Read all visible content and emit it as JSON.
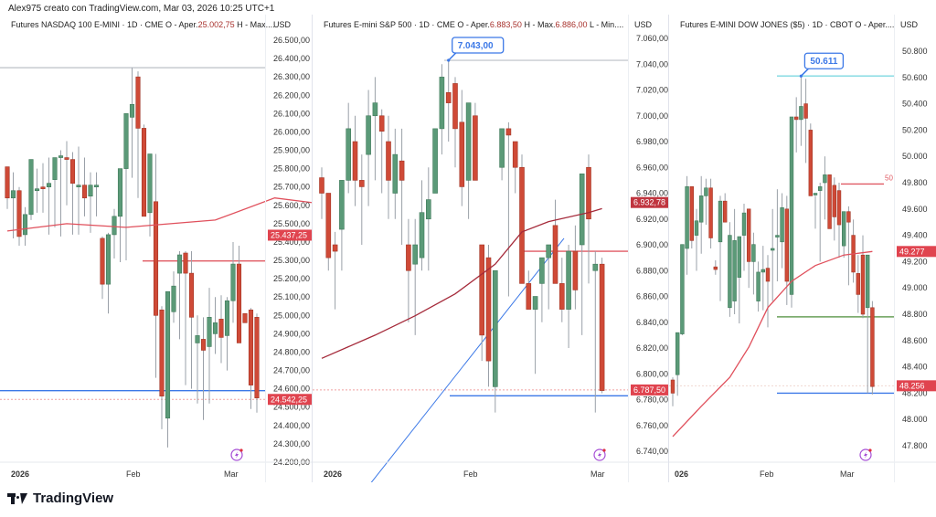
{
  "header": {
    "caption": "Alex975 creato con TradingView.com, Mar 03, 2026 10:25 UTC+1"
  },
  "brand": {
    "name": "TradingView",
    "icon": "tradingview-logo"
  },
  "colors": {
    "up": "#5b9a78",
    "down": "#cf4a37",
    "ma": "#e0505c",
    "ma_dark": "#a52a3a",
    "hline_blue": "#3b78e7",
    "hline_red": "#e05a63",
    "hline_green": "#6aa05a",
    "hline_cyan": "#7fd8e0",
    "label_bg_red": "#e0444f",
    "label_bg_dark": "#c0353f",
    "callout_blue": "#3b78e7",
    "grid": "#f0f2f5"
  },
  "panes": [
    {
      "title_prefix": "Futures NASDAQ 100 E-MINI · 1D · CME  O - Aper.",
      "title_value": "25.002,75",
      "title_suffix": "  H - Max....",
      "currency": "USD",
      "x_labels": [
        {
          "text": "2026",
          "x": 12,
          "bold": true
        },
        {
          "text": "Feb",
          "x": 138
        },
        {
          "text": "Mar",
          "x": 245
        }
      ],
      "price_labels": [
        {
          "text": "25.437,25",
          "value": 25437.25,
          "color": "#e0444f"
        },
        {
          "text": "24.542,25",
          "value": 24542.25,
          "color": "#e0444f"
        }
      ]
    },
    {
      "title_prefix": "Futures E-mini S&P 500 · 1D · CME  O - Aper.",
      "title_value": "6.883,50",
      "title_mid": "  H - Max.",
      "title_value2": "6.886,00",
      "title_suffix": "  L - Min....",
      "currency": "USD",
      "callout": "7.043,00",
      "x_labels": [
        {
          "text": "2026",
          "x": 12,
          "bold": true
        },
        {
          "text": "Feb",
          "x": 165
        },
        {
          "text": "Mar",
          "x": 304
        }
      ],
      "price_labels": [
        {
          "text": "6.932,78",
          "value": 6932.78,
          "color": "#c0353f"
        },
        {
          "text": "6.787,50",
          "value": 6787.5,
          "color": "#e0444f"
        }
      ]
    },
    {
      "title_prefix": "Futures E-MINI DOW JONES ($5) · 1D · CBOT  O - Aper....",
      "currency": "USD",
      "callout": "50.611",
      "ma_side_label": "50",
      "x_labels": [
        {
          "text": "026",
          "x": 6,
          "bold": true
        },
        {
          "text": "Feb",
          "x": 99
        },
        {
          "text": "Mar",
          "x": 187
        }
      ],
      "price_labels": [
        {
          "text": "49.277",
          "value": 49277,
          "color": "#e0444f"
        },
        {
          "text": "48.256",
          "value": 48256,
          "color": "#e0444f"
        }
      ]
    }
  ],
  "chart_data": [
    {
      "type": "candlestick",
      "title": "Futures NASDAQ 100 E-MINI · 1D · CME",
      "ylabel": "USD",
      "ylim": [
        24200,
        26500
      ],
      "yticks": [
        26500,
        26400,
        26300,
        26200,
        26100,
        26000,
        25900,
        25800,
        25700,
        25600,
        25500,
        25400,
        25300,
        25200,
        25100,
        25000,
        24900,
        24800,
        24700,
        24600,
        24500,
        24400,
        24300,
        24200
      ],
      "ytick_labels": [
        "26.500,00",
        "26.400,00",
        "26.300,00",
        "26.200,00",
        "26.100,00",
        "26.000,00",
        "25.900,00",
        "25.800,00",
        "25.700,00",
        "25.600,00",
        "25.500,00",
        "25.400,00",
        "25.300,00",
        "25.200,00",
        "25.100,00",
        "25.000,00",
        "24.900,00",
        "24.800,00",
        "24.700,00",
        "24.600,00",
        "24.500,00",
        "24.400,00",
        "24.300,00",
        "24.200,00"
      ],
      "xlabels": [
        "2026",
        "Feb",
        "Mar"
      ],
      "candles": [
        [
          25810,
          25810,
          25580,
          25640
        ],
        [
          25640,
          25780,
          25420,
          25680
        ],
        [
          25680,
          25700,
          25380,
          25430
        ],
        [
          25440,
          25590,
          25380,
          25550
        ],
        [
          25550,
          25810,
          25520,
          25850
        ],
        [
          25680,
          25800,
          25560,
          25690
        ],
        [
          25700,
          25830,
          25560,
          25690
        ],
        [
          25700,
          25860,
          25440,
          25720
        ],
        [
          25740,
          25800,
          25480,
          25860
        ],
        [
          25860,
          25900,
          25430,
          25870
        ],
        [
          25860,
          25950,
          25600,
          25850
        ],
        [
          25850,
          25890,
          25440,
          25720
        ],
        [
          25700,
          25920,
          25440,
          25710
        ],
        [
          25710,
          25860,
          25540,
          25640
        ],
        [
          25650,
          25780,
          25450,
          25710
        ],
        [
          25700,
          25780,
          25540,
          25710
        ],
        [
          25420,
          25430,
          25090,
          25170
        ],
        [
          25170,
          25450,
          25010,
          25440
        ],
        [
          25440,
          25580,
          25310,
          25540
        ],
        [
          25540,
          25640,
          25290,
          25800
        ],
        [
          25800,
          25900,
          25300,
          26100
        ],
        [
          26080,
          26350,
          25750,
          26150
        ],
        [
          26300,
          26330,
          25640,
          26020
        ],
        [
          26020,
          26040,
          25540,
          25540
        ],
        [
          25560,
          25740,
          25430,
          25880
        ],
        [
          25620,
          25880,
          24660,
          25000
        ],
        [
          25030,
          25050,
          24380,
          24560
        ],
        [
          24440,
          24980,
          24280,
          25130
        ],
        [
          25020,
          25240,
          24960,
          25160
        ],
        [
          25230,
          25350,
          24870,
          25330
        ],
        [
          25340,
          25350,
          24620,
          25230
        ],
        [
          25230,
          25350,
          24600,
          24990
        ],
        [
          24850,
          25000,
          24520,
          24890
        ],
        [
          24870,
          24990,
          24430,
          24810
        ],
        [
          24830,
          25150,
          24520,
          24990
        ],
        [
          24900,
          25100,
          24790,
          24960
        ],
        [
          24980,
          25110,
          24740,
          24880
        ],
        [
          24890,
          25100,
          24700,
          25080
        ],
        [
          25080,
          25400,
          24960,
          25280
        ],
        [
          25280,
          25380,
          24890,
          24850
        ],
        [
          25010,
          25000,
          24990,
          24960
        ],
        [
          25030,
          25040,
          24490,
          24620
        ],
        [
          24990,
          25010,
          24470,
          24550
        ]
      ],
      "ma": [
        [
          0,
          25460
        ],
        [
          10,
          25500
        ],
        [
          20,
          25480
        ],
        [
          35,
          25520
        ],
        [
          45,
          25640
        ],
        [
          55,
          25600
        ],
        [
          70,
          25480
        ],
        [
          85,
          25410
        ]
      ],
      "hlines": [
        {
          "value": 26350,
          "color": "#c7cbd1",
          "from": 0
        },
        {
          "value": 25297,
          "color": "#e05a63",
          "from": 156
        },
        {
          "value": 24590,
          "color": "#3b78e7",
          "from": 0
        },
        {
          "value": 24542.25,
          "color": "#f0a0a0",
          "from": 0,
          "dotted": true
        }
      ]
    },
    {
      "type": "candlestick",
      "title": "Futures E-mini S&P 500 · 1D · CME",
      "ylabel": "USD",
      "ylim": [
        6735,
        7060
      ],
      "yticks": [
        7060,
        7040,
        7020,
        7000,
        6980,
        6960,
        6940,
        6920,
        6900,
        6880,
        6860,
        6840,
        6820,
        6800,
        6780,
        6760,
        6740
      ],
      "ytick_labels": [
        "7.060,00",
        "7.040,00",
        "7.020,00",
        "7.000,00",
        "6.980,00",
        "6.960,00",
        "6.940,00",
        "6.920,00",
        "6.900,00",
        "6.880,00",
        "6.860,00",
        "6.840,00",
        "6.820,00",
        "6.800,00",
        "6.780,00",
        "6.760,00",
        "6.740,00"
      ],
      "xlabels": [
        "2026",
        "Feb",
        "Mar"
      ],
      "candles": [
        [
          6952,
          6960,
          6920,
          6940
        ],
        [
          6940,
          6940,
          6880,
          6890
        ],
        [
          6900,
          6910,
          6850,
          6895
        ],
        [
          6912,
          6935,
          6880,
          6950
        ],
        [
          6950,
          7010,
          6940,
          6990
        ],
        [
          6980,
          7000,
          6930,
          6950
        ],
        [
          6950,
          6970,
          6900,
          6945
        ],
        [
          6970,
          7020,
          6930,
          7000
        ],
        [
          7000,
          7030,
          6950,
          7010
        ],
        [
          7000,
          7005,
          6940,
          6988
        ],
        [
          6980,
          7000,
          6920,
          6950
        ],
        [
          6940,
          6990,
          6920,
          6970
        ],
        [
          6965,
          6990,
          6900,
          6950
        ],
        [
          6900,
          6920,
          6840,
          6880
        ],
        [
          6885,
          6920,
          6830,
          6900
        ],
        [
          6890,
          6950,
          6880,
          6925
        ],
        [
          6920,
          6960,
          6880,
          6935
        ],
        [
          6940,
          6990,
          6940,
          6990
        ],
        [
          6990,
          7040,
          6970,
          7030
        ],
        [
          7018,
          7043,
          6980,
          7010
        ],
        [
          7025,
          7030,
          6960,
          6990
        ],
        [
          6995,
          7020,
          6930,
          6945
        ],
        [
          6950,
          6990,
          6920,
          7010
        ],
        [
          7000,
          7010,
          6950,
          6950
        ],
        [
          6900,
          6900,
          6810,
          6830
        ],
        [
          6890,
          6900,
          6790,
          6810
        ],
        [
          6790,
          6820,
          6770,
          6880
        ],
        [
          6960,
          6990,
          6950,
          6990
        ],
        [
          6990,
          6995,
          6860,
          6985
        ],
        [
          6980,
          6970,
          6940,
          6960
        ],
        [
          6960,
          6970,
          6880,
          6870
        ],
        [
          6870,
          6880,
          6850,
          6850
        ],
        [
          6850,
          6860,
          6800,
          6860
        ],
        [
          6870,
          6890,
          6840,
          6890
        ],
        [
          6890,
          6900,
          6850,
          6900
        ],
        [
          6915,
          6935,
          6880,
          6870
        ],
        [
          6870,
          6890,
          6840,
          6850
        ],
        [
          6850,
          6900,
          6820,
          6895
        ],
        [
          6895,
          6915,
          6850,
          6865
        ],
        [
          6900,
          6950,
          6830,
          6955
        ],
        [
          6960,
          6970,
          6870,
          6920
        ],
        [
          6880,
          6895,
          6770,
          6885
        ],
        [
          6885,
          6890,
          6785,
          6787
        ]
      ],
      "ma": [
        [
          0,
          6812
        ],
        [
          8,
          6830
        ],
        [
          14,
          6845
        ],
        [
          20,
          6862
        ],
        [
          26,
          6885
        ],
        [
          30,
          6910
        ],
        [
          34,
          6918
        ],
        [
          40,
          6925
        ],
        [
          42,
          6928
        ]
      ],
      "hlines": [
        {
          "value": 7043,
          "color": "#c7cbd1",
          "from": 144
        },
        {
          "value": 6895,
          "color": "#e05a63",
          "from": 230
        },
        {
          "value": 6783,
          "color": "#3b78e7",
          "from": 150
        },
        {
          "value": 6787.5,
          "color": "#f0a0a0",
          "from": 0,
          "dotted": true
        }
      ],
      "trendline": {
        "from": [
          60,
          6712
        ],
        "to": [
          275,
          6905
        ],
        "color": "#3b78e7"
      }
    },
    {
      "type": "candlestick",
      "title": "Futures E-MINI DOW JONES ($5) · 1D · CBOT",
      "ylabel": "USD",
      "ylim": [
        47700,
        50900
      ],
      "yticks": [
        50800,
        50600,
        50400,
        50200,
        50000,
        49800,
        49600,
        49400,
        49200,
        49000,
        48800,
        48600,
        48400,
        48200,
        48000,
        47800
      ],
      "ytick_labels": [
        "50.800",
        "50.600",
        "50.400",
        "50.200",
        "50.000",
        "49.800",
        "49.600",
        "49.400",
        "49.200",
        "49.000",
        "48.800",
        "48.600",
        "48.400",
        "48.200",
        "48.000",
        "47.800"
      ],
      "xlabels": [
        "026",
        "Feb",
        "Mar"
      ],
      "candles": [
        [
          48300,
          48320,
          48100,
          48200
        ],
        [
          48340,
          48550,
          48180,
          48660
        ],
        [
          48650,
          49260,
          48640,
          49330
        ],
        [
          49300,
          49850,
          49100,
          49770
        ],
        [
          49770,
          49700,
          49300,
          49360
        ],
        [
          49400,
          49600,
          49130,
          49510
        ],
        [
          49500,
          49850,
          49260,
          49700
        ],
        [
          49700,
          49830,
          49480,
          49760
        ],
        [
          49760,
          49830,
          49300,
          49380
        ],
        [
          49160,
          49210,
          49100,
          49140
        ],
        [
          49350,
          49700,
          48900,
          49660
        ],
        [
          49660,
          49720,
          49500,
          49500
        ],
        [
          48850,
          49500,
          48780,
          49400
        ],
        [
          48900,
          49600,
          48800,
          49360
        ],
        [
          49080,
          49300,
          48730,
          49390
        ],
        [
          49400,
          49640,
          49130,
          49570
        ],
        [
          49600,
          49500,
          49000,
          49200
        ],
        [
          49200,
          49420,
          48950,
          49330
        ],
        [
          48900,
          49200,
          48820,
          49120
        ],
        [
          49120,
          49320,
          48830,
          49140
        ],
        [
          49150,
          49250,
          48700,
          49050
        ],
        [
          49300,
          49600,
          48900,
          49300
        ],
        [
          49400,
          49750,
          49050,
          49400
        ],
        [
          49350,
          49720,
          49150,
          49610
        ],
        [
          49600,
          49700,
          48870,
          49050
        ],
        [
          48950,
          49640,
          48850,
          50300
        ],
        [
          50300,
          50450,
          50030,
          50280
        ],
        [
          50280,
          50611,
          50080,
          50380
        ],
        [
          50400,
          50590,
          49950,
          50290
        ],
        [
          50200,
          50250,
          49740,
          49700
        ],
        [
          49720,
          49700,
          49450,
          49720
        ],
        [
          49740,
          49800,
          49200,
          49770
        ],
        [
          49800,
          50000,
          49520,
          49860
        ],
        [
          49860,
          49800,
          49680,
          49450
        ],
        [
          49780,
          49840,
          49360,
          49540
        ],
        [
          49740,
          49800,
          49230,
          49480
        ],
        [
          49320,
          49380,
          49230,
          49580
        ],
        [
          49580,
          49620,
          49020,
          49500
        ],
        [
          49400,
          49520,
          49040,
          49120
        ],
        [
          49110,
          49250,
          48810,
          48950
        ],
        [
          49250,
          49400,
          48770,
          48800
        ],
        [
          48850,
          49250,
          48200,
          49250
        ],
        [
          48850,
          48900,
          48190,
          48250
        ]
      ],
      "ma": [
        [
          0,
          47870
        ],
        [
          6,
          48100
        ],
        [
          12,
          48320
        ],
        [
          16,
          48550
        ],
        [
          20,
          48850
        ],
        [
          25,
          49050
        ],
        [
          30,
          49170
        ],
        [
          36,
          49250
        ],
        [
          42,
          49277
        ]
      ],
      "hlines": [
        {
          "value": 50611,
          "color": "#7fd8e0",
          "from": 118
        },
        {
          "value": 49790,
          "color": "#e05a63",
          "from": 188,
          "to": 235
        },
        {
          "value": 48780,
          "color": "#6aa05a",
          "from": 118
        },
        {
          "value": 48200,
          "color": "#3b78e7",
          "from": 118
        },
        {
          "value": 48256,
          "color": "#f0d8d0",
          "from": 0,
          "dotted": true
        }
      ]
    }
  ]
}
